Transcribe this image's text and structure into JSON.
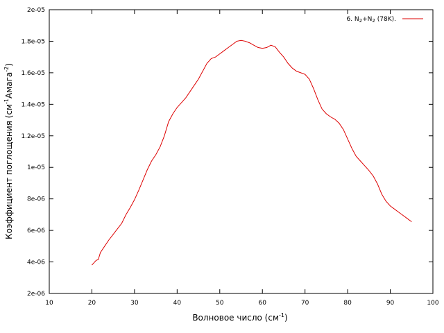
{
  "chart_data": {
    "type": "line",
    "xlabel": "Волновое число (см-1)",
    "xlabel_parts": {
      "base": "Волновое число (см",
      "sup": "-1",
      "tail": ")"
    },
    "ylabel": "Коэффициент поглощения (см-1Амага-2)",
    "ylabel_parts": {
      "base": "Коэффициент поглощения (см",
      "sup1": "-1",
      "mid": "Амага",
      "sup2": "-2",
      "tail": ")"
    },
    "xlim": [
      10,
      100
    ],
    "ylim": [
      2e-06,
      2e-05
    ],
    "x_ticks": [
      "10",
      "20",
      "30",
      "40",
      "50",
      "60",
      "70",
      "80",
      "90",
      "100"
    ],
    "x_tick_values": [
      10,
      20,
      30,
      40,
      50,
      60,
      70,
      80,
      90,
      100
    ],
    "y_ticks": [
      "2e-06",
      "4e-06",
      "6e-06",
      "8e-06",
      "1e-05",
      "1.2e-05",
      "1.4e-05",
      "1.6e-05",
      "1.8e-05",
      "2e-05"
    ],
    "y_tick_values": [
      2e-06,
      4e-06,
      6e-06,
      8e-06,
      1e-05,
      1.2e-05,
      1.4e-05,
      1.6e-05,
      1.8e-05,
      2e-05
    ],
    "grid": false,
    "legend_position": "top-right",
    "series": [
      {
        "name": "6. N2+N2 (78K).",
        "legend_parts": {
          "a": "6. N",
          "s1": "2",
          "b": "+N",
          "s2": "2",
          "c": " (78K)."
        },
        "color": "#dd0000",
        "points": [
          [
            20.0,
            3.8e-06
          ],
          [
            20.5,
            3.95e-06
          ],
          [
            21.0,
            4.1e-06
          ],
          [
            21.5,
            4.15e-06
          ],
          [
            22.0,
            4.6e-06
          ],
          [
            23.0,
            5e-06
          ],
          [
            24.0,
            5.4e-06
          ],
          [
            25.0,
            5.75e-06
          ],
          [
            26.0,
            6.1e-06
          ],
          [
            27.0,
            6.45e-06
          ],
          [
            28.0,
            7e-06
          ],
          [
            29.0,
            7.45e-06
          ],
          [
            30.0,
            7.95e-06
          ],
          [
            31.0,
            8.55e-06
          ],
          [
            32.0,
            9.2e-06
          ],
          [
            33.0,
            9.85e-06
          ],
          [
            34.0,
            1.04e-05
          ],
          [
            35.0,
            1.08e-05
          ],
          [
            36.0,
            1.13e-05
          ],
          [
            37.0,
            1.2e-05
          ],
          [
            38.0,
            1.29e-05
          ],
          [
            39.0,
            1.34e-05
          ],
          [
            40.0,
            1.38e-05
          ],
          [
            41.0,
            1.41e-05
          ],
          [
            42.0,
            1.44e-05
          ],
          [
            43.0,
            1.48e-05
          ],
          [
            44.0,
            1.52e-05
          ],
          [
            45.0,
            1.56e-05
          ],
          [
            46.0,
            1.61e-05
          ],
          [
            47.0,
            1.66e-05
          ],
          [
            48.0,
            1.69e-05
          ],
          [
            49.0,
            1.7e-05
          ],
          [
            50.0,
            1.72e-05
          ],
          [
            51.0,
            1.74e-05
          ],
          [
            52.0,
            1.76e-05
          ],
          [
            53.0,
            1.78e-05
          ],
          [
            54.0,
            1.8e-05
          ],
          [
            55.0,
            1.805e-05
          ],
          [
            56.0,
            1.8e-05
          ],
          [
            57.0,
            1.79e-05
          ],
          [
            58.0,
            1.775e-05
          ],
          [
            59.0,
            1.76e-05
          ],
          [
            60.0,
            1.755e-05
          ],
          [
            61.0,
            1.76e-05
          ],
          [
            62.0,
            1.775e-05
          ],
          [
            63.0,
            1.765e-05
          ],
          [
            64.0,
            1.73e-05
          ],
          [
            65.0,
            1.7e-05
          ],
          [
            66.0,
            1.66e-05
          ],
          [
            67.0,
            1.63e-05
          ],
          [
            68.0,
            1.61e-05
          ],
          [
            69.0,
            1.6e-05
          ],
          [
            70.0,
            1.59e-05
          ],
          [
            71.0,
            1.56e-05
          ],
          [
            72.0,
            1.5e-05
          ],
          [
            73.0,
            1.43e-05
          ],
          [
            74.0,
            1.37e-05
          ],
          [
            75.0,
            1.34e-05
          ],
          [
            76.0,
            1.32e-05
          ],
          [
            77.0,
            1.305e-05
          ],
          [
            78.0,
            1.28e-05
          ],
          [
            79.0,
            1.24e-05
          ],
          [
            80.0,
            1.18e-05
          ],
          [
            81.0,
            1.12e-05
          ],
          [
            82.0,
            1.07e-05
          ],
          [
            83.0,
            1.04e-05
          ],
          [
            84.0,
            1.01e-05
          ],
          [
            85.0,
            9.8e-06
          ],
          [
            86.0,
            9.45e-06
          ],
          [
            87.0,
            8.95e-06
          ],
          [
            88.0,
            8.3e-06
          ],
          [
            89.0,
            7.85e-06
          ],
          [
            90.0,
            7.55e-06
          ],
          [
            91.0,
            7.35e-06
          ],
          [
            92.0,
            7.15e-06
          ],
          [
            93.0,
            6.95e-06
          ],
          [
            94.0,
            6.75e-06
          ],
          [
            95.0,
            6.55e-06
          ]
        ]
      }
    ]
  }
}
